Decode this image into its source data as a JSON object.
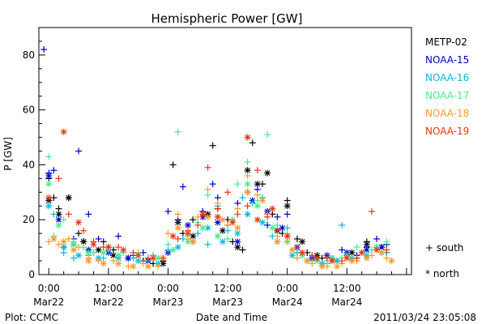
{
  "chart_data": {
    "type": "scatter",
    "title": "Hemispheric Power [GW]",
    "xlabel": "Date and Time",
    "ylabel": "P [GW]",
    "x_unit": "hours from 2011-03-22 00:00",
    "xlim": [
      -2,
      73
    ],
    "ylim": [
      0,
      90
    ],
    "yticks": [
      0,
      20,
      40,
      60,
      80
    ],
    "xticks": [
      {
        "x": 0,
        "time": "0:00",
        "date": "Mar22"
      },
      {
        "x": 12,
        "time": "12:00",
        "date": "Mar22"
      },
      {
        "x": 24,
        "time": "0:00",
        "date": "Mar23"
      },
      {
        "x": 36,
        "time": "12:00",
        "date": "Mar23"
      },
      {
        "x": 48,
        "time": "0:00",
        "date": "Mar24"
      },
      {
        "x": 60,
        "time": "12:00",
        "date": "Mar24"
      }
    ],
    "legend_position": "right",
    "series": [
      {
        "name": "METP-02",
        "color": "#000000",
        "south": [
          [
            0,
            35
          ],
          [
            1,
            28
          ],
          [
            2,
            24
          ],
          [
            4,
            28
          ],
          [
            6,
            15
          ],
          [
            7,
            12
          ],
          [
            9,
            8
          ],
          [
            11,
            12
          ],
          [
            13,
            9
          ],
          [
            16,
            6
          ],
          [
            19,
            5
          ],
          [
            21,
            4
          ],
          [
            23,
            5
          ],
          [
            25,
            40
          ],
          [
            27,
            15
          ],
          [
            29,
            20
          ],
          [
            31,
            23
          ],
          [
            33,
            47
          ],
          [
            34,
            24
          ],
          [
            36,
            20
          ],
          [
            37,
            12
          ],
          [
            39,
            9
          ],
          [
            41,
            48
          ],
          [
            43,
            33
          ],
          [
            45,
            22
          ],
          [
            47,
            15
          ],
          [
            48,
            27
          ],
          [
            50,
            13
          ],
          [
            52,
            8
          ],
          [
            55,
            6
          ],
          [
            58,
            5
          ],
          [
            60,
            7
          ],
          [
            62,
            6
          ],
          [
            64,
            12
          ],
          [
            66,
            10
          ],
          [
            68,
            8
          ]
        ],
        "north": [
          [
            0,
            27
          ],
          [
            2,
            22
          ],
          [
            4,
            28
          ],
          [
            7,
            12
          ],
          [
            10,
            9
          ],
          [
            13,
            7
          ],
          [
            16,
            6
          ],
          [
            20,
            5
          ],
          [
            23,
            4
          ],
          [
            26,
            19
          ],
          [
            29,
            14
          ],
          [
            32,
            22
          ],
          [
            35,
            16
          ],
          [
            38,
            10
          ],
          [
            40,
            38
          ],
          [
            42,
            33
          ],
          [
            44,
            37
          ],
          [
            46,
            16
          ],
          [
            48,
            25
          ],
          [
            51,
            12
          ],
          [
            54,
            7
          ],
          [
            57,
            6
          ],
          [
            61,
            8
          ],
          [
            64,
            11
          ],
          [
            67,
            10
          ]
        ]
      },
      {
        "name": "NOAA-15",
        "color": "#0000cc",
        "south": [
          [
            -1,
            82
          ],
          [
            0,
            37
          ],
          [
            1,
            38
          ],
          [
            3,
            10
          ],
          [
            5,
            13
          ],
          [
            6,
            45
          ],
          [
            8,
            22
          ],
          [
            10,
            13
          ],
          [
            12,
            10
          ],
          [
            14,
            14
          ],
          [
            17,
            7
          ],
          [
            19,
            8
          ],
          [
            21,
            7
          ],
          [
            24,
            23
          ],
          [
            26,
            20
          ],
          [
            27,
            32
          ],
          [
            29,
            12
          ],
          [
            31,
            23
          ],
          [
            33,
            33
          ],
          [
            34,
            28
          ],
          [
            36,
            18
          ],
          [
            38,
            26
          ],
          [
            40,
            30
          ],
          [
            42,
            31
          ],
          [
            44,
            18
          ],
          [
            46,
            21
          ],
          [
            48,
            22
          ],
          [
            50,
            8
          ],
          [
            53,
            6
          ],
          [
            56,
            6
          ],
          [
            59,
            9
          ],
          [
            62,
            7
          ],
          [
            64,
            10
          ],
          [
            66,
            13
          ],
          [
            68,
            11
          ]
        ],
        "north": [
          [
            0,
            36
          ],
          [
            2,
            20
          ],
          [
            5,
            11
          ],
          [
            8,
            9
          ],
          [
            12,
            8
          ],
          [
            16,
            6
          ],
          [
            20,
            5
          ],
          [
            24,
            8
          ],
          [
            28,
            18
          ],
          [
            31,
            21
          ],
          [
            34,
            19
          ],
          [
            38,
            12
          ],
          [
            41,
            27
          ],
          [
            44,
            23
          ],
          [
            47,
            17
          ],
          [
            50,
            10
          ],
          [
            53,
            6
          ],
          [
            56,
            7
          ],
          [
            60,
            8
          ],
          [
            64,
            9
          ],
          [
            67,
            10
          ]
        ]
      },
      {
        "name": "NOAA-16",
        "color": "#00bbdd",
        "south": [
          [
            1,
            22
          ],
          [
            3,
            8
          ],
          [
            5,
            6
          ],
          [
            8,
            7
          ],
          [
            11,
            6
          ],
          [
            14,
            7
          ],
          [
            17,
            6
          ],
          [
            20,
            5
          ],
          [
            24,
            9
          ],
          [
            27,
            13
          ],
          [
            30,
            15
          ],
          [
            32,
            11
          ],
          [
            34,
            25
          ],
          [
            36,
            16
          ],
          [
            39,
            28
          ],
          [
            41,
            26
          ],
          [
            43,
            28
          ],
          [
            45,
            14
          ],
          [
            48,
            17
          ],
          [
            50,
            8
          ],
          [
            53,
            5
          ],
          [
            56,
            4
          ],
          [
            59,
            18
          ],
          [
            62,
            6
          ],
          [
            65,
            9
          ],
          [
            68,
            8
          ]
        ],
        "north": [
          [
            0,
            25
          ],
          [
            3,
            10
          ],
          [
            6,
            7
          ],
          [
            10,
            6
          ],
          [
            14,
            6
          ],
          [
            18,
            5
          ],
          [
            22,
            4
          ],
          [
            26,
            10
          ],
          [
            29,
            12
          ],
          [
            32,
            17
          ],
          [
            35,
            12
          ],
          [
            38,
            15
          ],
          [
            40,
            22
          ],
          [
            43,
            19
          ],
          [
            46,
            12
          ],
          [
            49,
            7
          ],
          [
            52,
            5
          ],
          [
            55,
            4
          ],
          [
            58,
            5
          ],
          [
            61,
            6
          ],
          [
            64,
            7
          ],
          [
            67,
            8
          ]
        ]
      },
      {
        "name": "NOAA-17",
        "color": "#44ee88",
        "south": [
          [
            0,
            43
          ],
          [
            1,
            14
          ],
          [
            3,
            20
          ],
          [
            5,
            12
          ],
          [
            7,
            10
          ],
          [
            9,
            8
          ],
          [
            12,
            9
          ],
          [
            15,
            8
          ],
          [
            18,
            8
          ],
          [
            21,
            7
          ],
          [
            24,
            11
          ],
          [
            26,
            52
          ],
          [
            28,
            14
          ],
          [
            30,
            19
          ],
          [
            32,
            29
          ],
          [
            34,
            21
          ],
          [
            36,
            13
          ],
          [
            38,
            33
          ],
          [
            40,
            41
          ],
          [
            42,
            27
          ],
          [
            44,
            51
          ],
          [
            46,
            18
          ],
          [
            48,
            15
          ],
          [
            50,
            9
          ],
          [
            53,
            7
          ],
          [
            56,
            5
          ],
          [
            59,
            6
          ],
          [
            62,
            10
          ],
          [
            65,
            9
          ],
          [
            68,
            12
          ]
        ],
        "north": [
          [
            0,
            33
          ],
          [
            2,
            18
          ],
          [
            5,
            11
          ],
          [
            8,
            8
          ],
          [
            11,
            8
          ],
          [
            14,
            7
          ],
          [
            18,
            7
          ],
          [
            22,
            6
          ],
          [
            25,
            9
          ],
          [
            28,
            12
          ],
          [
            31,
            17
          ],
          [
            34,
            14
          ],
          [
            37,
            20
          ],
          [
            40,
            33
          ],
          [
            42,
            25
          ],
          [
            45,
            17
          ],
          [
            48,
            12
          ],
          [
            51,
            7
          ],
          [
            54,
            5
          ],
          [
            57,
            6
          ],
          [
            60,
            7
          ],
          [
            63,
            8
          ],
          [
            66,
            10
          ]
        ]
      },
      {
        "name": "NOAA-18",
        "color": "#ff9922",
        "south": [
          [
            0,
            12
          ],
          [
            2,
            11
          ],
          [
            4,
            13
          ],
          [
            6,
            10
          ],
          [
            8,
            6
          ],
          [
            10,
            5
          ],
          [
            13,
            5
          ],
          [
            16,
            3
          ],
          [
            19,
            4
          ],
          [
            22,
            3
          ],
          [
            24,
            15
          ],
          [
            26,
            22
          ],
          [
            28,
            13
          ],
          [
            30,
            21
          ],
          [
            32,
            31
          ],
          [
            34,
            26
          ],
          [
            36,
            18
          ],
          [
            38,
            24
          ],
          [
            40,
            36
          ],
          [
            42,
            29
          ],
          [
            44,
            22
          ],
          [
            46,
            14
          ],
          [
            48,
            12
          ],
          [
            50,
            6
          ],
          [
            53,
            4
          ],
          [
            56,
            3
          ],
          [
            59,
            4
          ],
          [
            62,
            5
          ],
          [
            65,
            7
          ],
          [
            68,
            6
          ]
        ],
        "north": [
          [
            1,
            13
          ],
          [
            3,
            12
          ],
          [
            5,
            9
          ],
          [
            8,
            5
          ],
          [
            11,
            4
          ],
          [
            14,
            4
          ],
          [
            17,
            3
          ],
          [
            20,
            3
          ],
          [
            23,
            6
          ],
          [
            26,
            17
          ],
          [
            29,
            12
          ],
          [
            32,
            21
          ],
          [
            35,
            20
          ],
          [
            38,
            17
          ],
          [
            40,
            30
          ],
          [
            43,
            27
          ],
          [
            46,
            12
          ],
          [
            49,
            9
          ],
          [
            52,
            5
          ],
          [
            55,
            3
          ],
          [
            58,
            3
          ],
          [
            61,
            5
          ],
          [
            64,
            6
          ],
          [
            67,
            8
          ],
          [
            69,
            5
          ]
        ]
      },
      {
        "name": "NOAA-19",
        "color": "#ee3311",
        "south": [
          [
            2,
            35
          ],
          [
            4,
            22
          ],
          [
            7,
            16
          ],
          [
            9,
            12
          ],
          [
            11,
            10
          ],
          [
            14,
            10
          ],
          [
            17,
            8
          ],
          [
            20,
            6
          ],
          [
            23,
            6
          ],
          [
            26,
            13
          ],
          [
            28,
            16
          ],
          [
            30,
            18
          ],
          [
            32,
            39
          ],
          [
            34,
            24
          ],
          [
            36,
            30
          ],
          [
            38,
            22
          ],
          [
            40,
            25
          ],
          [
            42,
            38
          ],
          [
            44,
            21
          ],
          [
            46,
            16
          ],
          [
            48,
            14
          ],
          [
            50,
            10
          ],
          [
            53,
            7
          ],
          [
            56,
            6
          ],
          [
            59,
            5
          ],
          [
            62,
            6
          ],
          [
            65,
            23
          ],
          [
            68,
            9
          ]
        ],
        "north": [
          [
            0,
            28
          ],
          [
            3,
            52
          ],
          [
            6,
            19
          ],
          [
            9,
            11
          ],
          [
            12,
            10
          ],
          [
            15,
            9
          ],
          [
            18,
            7
          ],
          [
            21,
            6
          ],
          [
            25,
            14
          ],
          [
            28,
            15
          ],
          [
            31,
            22
          ],
          [
            34,
            21
          ],
          [
            37,
            19
          ],
          [
            40,
            50
          ],
          [
            42,
            20
          ],
          [
            45,
            24
          ],
          [
            48,
            14
          ],
          [
            51,
            8
          ],
          [
            54,
            6
          ],
          [
            57,
            5
          ],
          [
            60,
            6
          ],
          [
            63,
            8
          ],
          [
            66,
            9
          ]
        ]
      }
    ],
    "marker_legend": {
      "south": "+ south",
      "north": "* north"
    }
  },
  "footer": {
    "left": "Plot: CCMC",
    "right": "2011/03/24 23:05:08"
  }
}
